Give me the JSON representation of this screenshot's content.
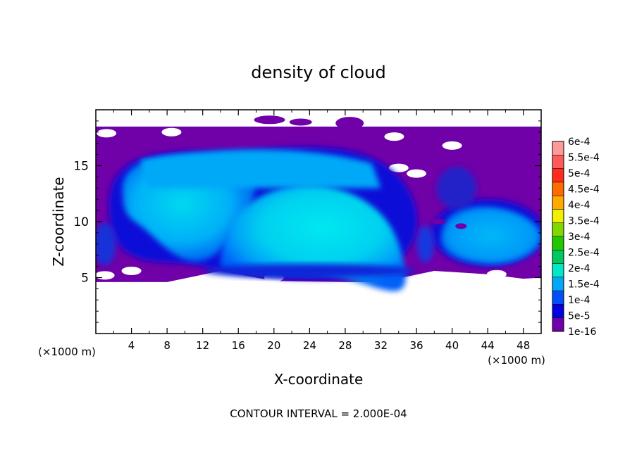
{
  "chart_data": {
    "type": "heatmap",
    "title": "density of cloud",
    "xlabel": "X-coordinate",
    "ylabel": "Z-coordinate",
    "x_unit_label": "(×1000 m)",
    "x_unit_label_right": "(×1000 m)",
    "footer": "CONTOUR INTERVAL = 2.000E-04",
    "xlim": [
      0,
      50
    ],
    "ylim": [
      0,
      20
    ],
    "xticks": [
      4,
      8,
      12,
      16,
      20,
      24,
      28,
      32,
      36,
      40,
      44,
      48
    ],
    "yticks": [
      5,
      10,
      15
    ],
    "colorbar": {
      "labels": [
        "6e-4",
        "5.5e-4",
        "5e-4",
        "4.5e-4",
        "4e-4",
        "3.5e-4",
        "3e-4",
        "2.5e-4",
        "2e-4",
        "1.5e-4",
        "1e-4",
        "5e-5",
        "1e-16"
      ],
      "colors": [
        "#ff9a9a",
        "#ff5a5a",
        "#ff2a1a",
        "#ff6a00",
        "#ffaa00",
        "#f0f000",
        "#80d800",
        "#20c800",
        "#00c860",
        "#00e8c8",
        "#00a8f8",
        "#0050f8",
        "#0000e0",
        "#7000a8"
      ]
    },
    "field_regions": [
      {
        "level": "1e-16",
        "x": [
          0,
          50
        ],
        "z": [
          4.6,
          18.5
        ]
      },
      {
        "level": "5e-5",
        "x": [
          1,
          48
        ],
        "z": [
          4.8,
          17.5
        ]
      },
      {
        "level": "1.5e-4",
        "x": [
          3,
          35
        ],
        "z": [
          6,
          16.5
        ]
      },
      {
        "level": "2e-4",
        "x": [
          15,
          33
        ],
        "z": [
          6.5,
          13
        ]
      },
      {
        "level": "1.5e-4",
        "x": [
          38,
          50
        ],
        "z": [
          5.5,
          11.5
        ]
      }
    ]
  }
}
